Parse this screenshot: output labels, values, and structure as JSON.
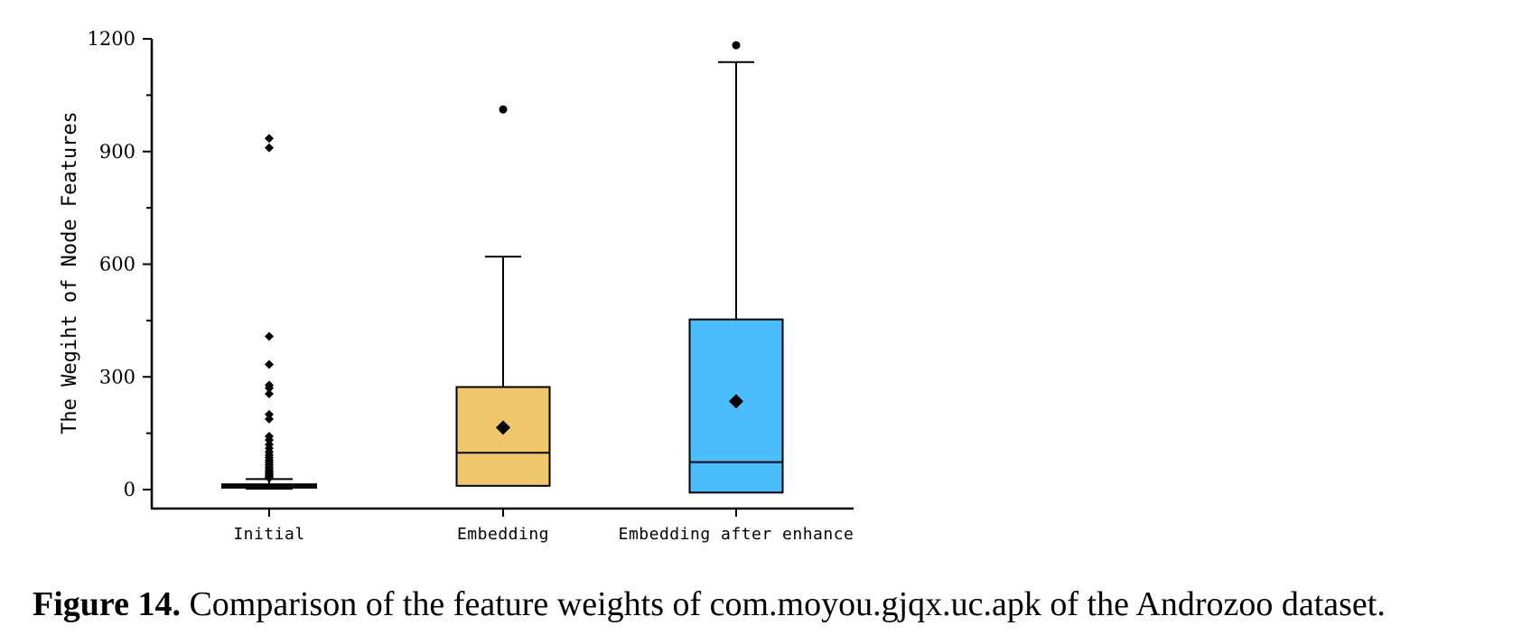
{
  "chart_data": {
    "type": "box",
    "ylabel": "The Wegiht of Node Features",
    "xlabel": "",
    "ylim": [
      -50,
      1200
    ],
    "yticks": [
      0,
      300,
      600,
      900,
      1200
    ],
    "ytick_labels": [
      "0",
      "300",
      "600",
      "900",
      "1200"
    ],
    "categories": [
      "Initial",
      "Embedding",
      "Embedding after enhance"
    ],
    "boxes": [
      {
        "category": "Initial",
        "color": "#b5862c",
        "whisker_low": 2,
        "q1": 5,
        "median": 10,
        "q3": 14,
        "whisker_high": 28,
        "mean": 10,
        "outliers": [
          935,
          910,
          408,
          333,
          278,
          270,
          255,
          200,
          188,
          142,
          132,
          120,
          110,
          100,
          92,
          85,
          78,
          72,
          66,
          60,
          55,
          50,
          46,
          42,
          38,
          34,
          31
        ]
      },
      {
        "category": "Embedding",
        "color": "#efc66c",
        "whisker_low": 10,
        "q1": 10,
        "median": 98,
        "q3": 273,
        "whisker_high": 620,
        "mean": 165,
        "outliers": [
          1012
        ]
      },
      {
        "category": "Embedding after enhance",
        "color": "#4bbdfc",
        "whisker_low": -8,
        "q1": -8,
        "median": 73,
        "q3": 453,
        "whisker_high": 1138,
        "mean": 235,
        "outliers": [
          1183
        ]
      }
    ]
  },
  "caption": {
    "label": "Figure 14.",
    "text": " Comparison of the feature weights of com.moyou.gjqx.uc.apk of the Androzoo dataset."
  }
}
